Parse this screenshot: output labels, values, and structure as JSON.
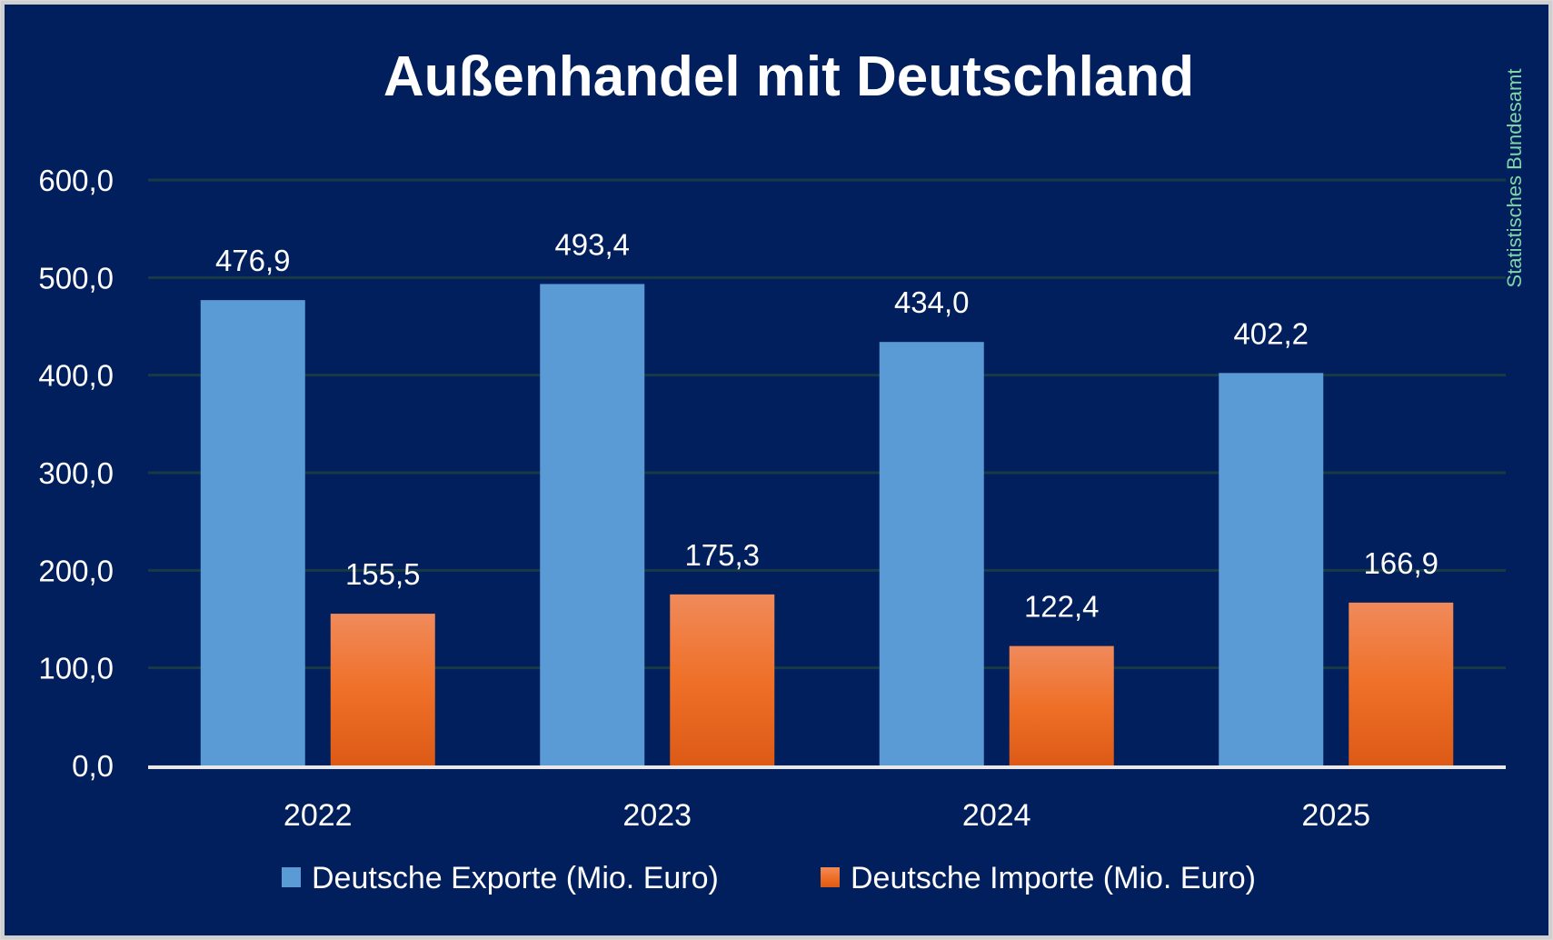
{
  "chart_data": {
    "type": "bar",
    "title": "Außenhandel mit Deutschland",
    "categories": [
      "2022",
      "2023",
      "2024",
      "2025"
    ],
    "series": [
      {
        "name": "Deutsche Exporte (Mio. Euro)",
        "values": [
          476.9,
          493.4,
          434.0,
          402.2
        ],
        "labels": [
          "476,9",
          "493,4",
          "434,0",
          "402,2"
        ],
        "color": "#5b9bd5"
      },
      {
        "name": "Deutsche Importe (Mio. Euro)",
        "values": [
          155.5,
          175.3,
          122.4,
          166.9
        ],
        "labels": [
          "155,5",
          "175,3",
          "122,4",
          "166,9"
        ],
        "color": "#ed7d31"
      }
    ],
    "ylim": [
      0,
      600
    ],
    "yticks": [
      "0,0",
      "100,0",
      "200,0",
      "300,0",
      "400,0",
      "500,0",
      "600,0"
    ],
    "grid": true,
    "legend": "bottom",
    "xlabel": "",
    "ylabel": ""
  },
  "source": "Statistisches Bundesamt",
  "colors": {
    "background": "#001f5c",
    "grid": "#173a44",
    "source": "#7fd6a8"
  }
}
